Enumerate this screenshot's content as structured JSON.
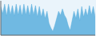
{
  "chart_data": {
    "type": "area",
    "x": [
      0,
      1,
      2,
      3,
      4,
      5,
      6,
      7,
      8,
      9,
      10,
      11,
      12,
      13,
      14,
      15,
      16,
      17,
      18,
      19,
      20,
      21,
      22,
      23,
      24,
      25,
      26,
      27,
      28,
      29,
      30,
      31,
      32,
      33,
      34,
      35,
      36,
      37,
      38,
      39,
      40,
      41,
      42,
      43,
      44,
      45,
      46,
      47,
      48,
      49
    ],
    "values": [
      60,
      45,
      65,
      40,
      65,
      42,
      62,
      40,
      65,
      42,
      63,
      40,
      65,
      42,
      62,
      40,
      65,
      42,
      62,
      38,
      60,
      38,
      55,
      35,
      50,
      25,
      15,
      8,
      20,
      35,
      50,
      42,
      55,
      42,
      35,
      20,
      10,
      30,
      50,
      35,
      55,
      30,
      60,
      38,
      55,
      40,
      62,
      42,
      60,
      38
    ],
    "color": "#5aaedd",
    "xlim": [
      0,
      49
    ],
    "ylim": [
      0,
      72
    ],
    "tick_labels": false
  }
}
